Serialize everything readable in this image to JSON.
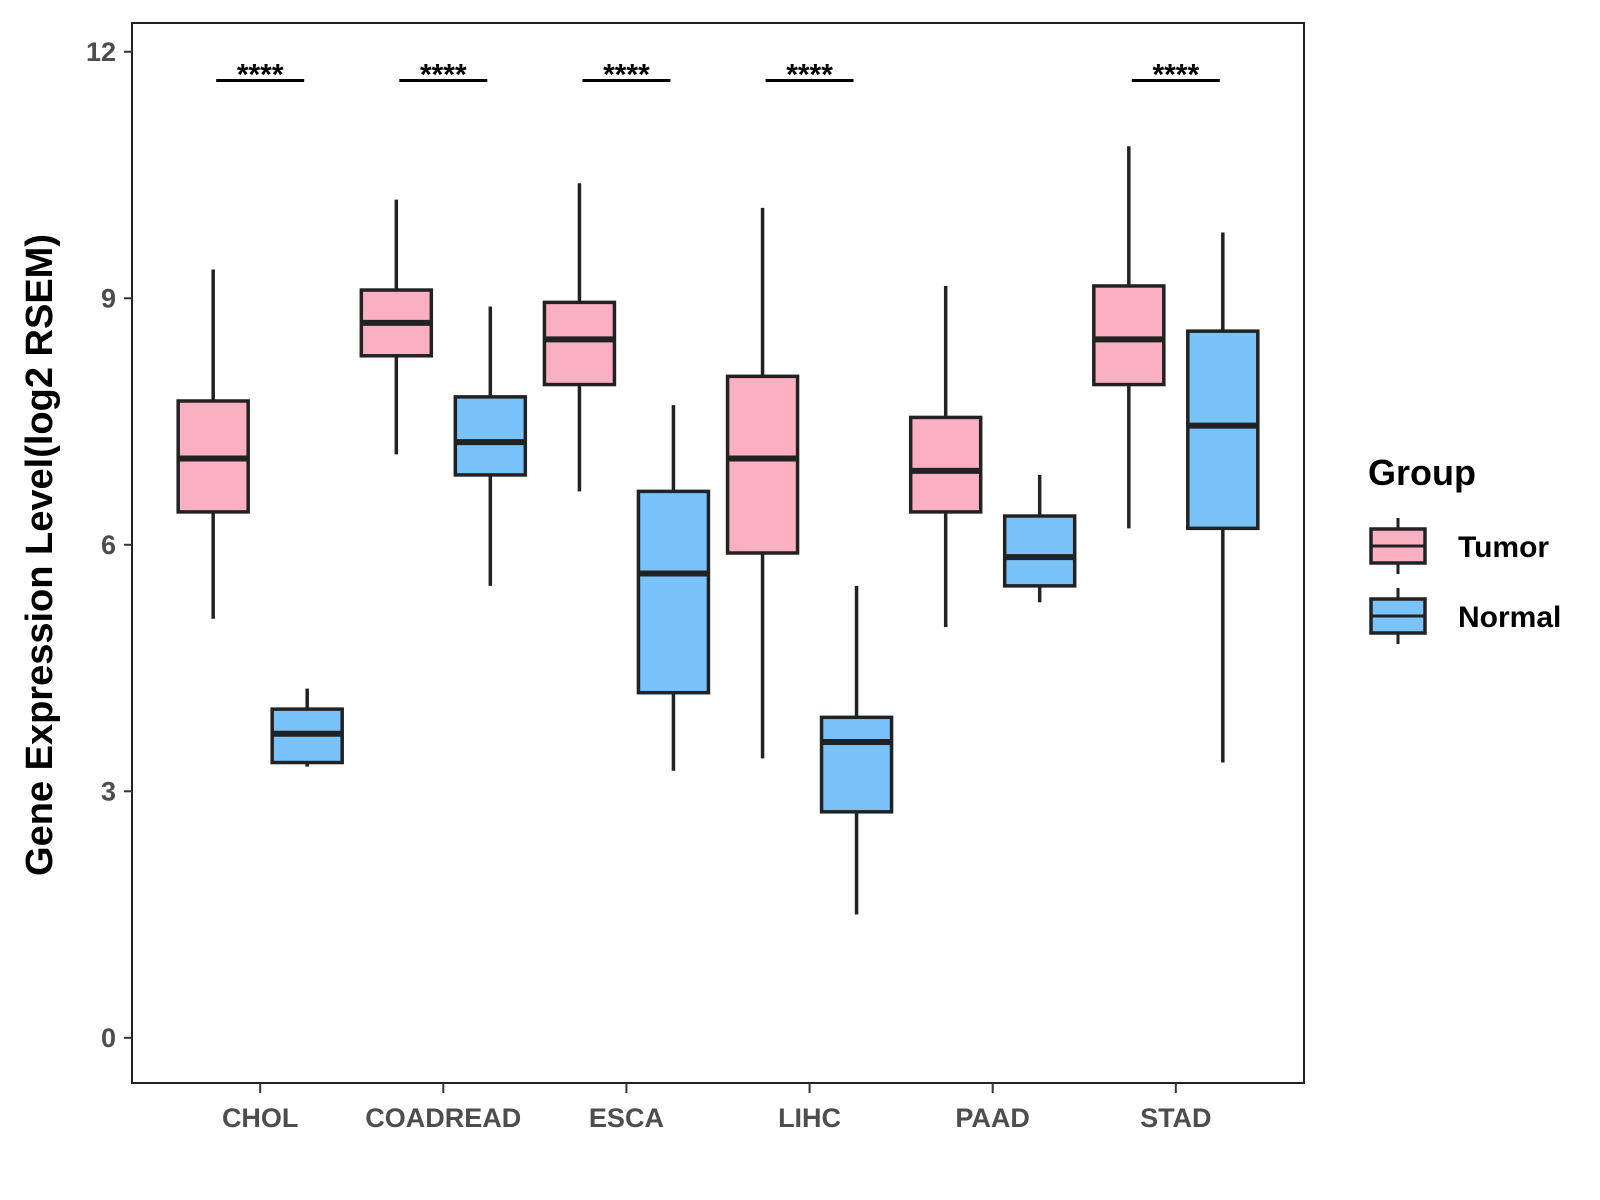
{
  "chart_data": {
    "type": "boxplot",
    "title": "",
    "xlabel": "",
    "ylabel": "Gene Expression Level(log2 RSEM)",
    "ylim": [
      -0.55,
      12.35
    ],
    "yticks": [
      0,
      3,
      6,
      9,
      12
    ],
    "categories": [
      "CHOL",
      "COADREAD",
      "ESCA",
      "LIHC",
      "PAAD",
      "STAD"
    ],
    "legend": {
      "title": "Group",
      "placement": "right",
      "entries": [
        {
          "name": "Tumor",
          "color": "#fbb0c1"
        },
        {
          "name": "Normal",
          "color": "#79c2fa"
        }
      ]
    },
    "series": [
      {
        "name": "Tumor",
        "color": "#fbb0c1",
        "boxes": [
          {
            "category": "CHOL",
            "whisker_low": 5.1,
            "q1": 6.4,
            "median": 7.05,
            "q3": 7.75,
            "whisker_high": 9.35
          },
          {
            "category": "COADREAD",
            "whisker_low": 7.1,
            "q1": 8.3,
            "median": 8.7,
            "q3": 9.1,
            "whisker_high": 10.2
          },
          {
            "category": "ESCA",
            "whisker_low": 6.65,
            "q1": 7.95,
            "median": 8.5,
            "q3": 8.95,
            "whisker_high": 10.4
          },
          {
            "category": "LIHC",
            "whisker_low": 3.4,
            "q1": 5.9,
            "median": 7.05,
            "q3": 8.05,
            "whisker_high": 10.1
          },
          {
            "category": "PAAD",
            "whisker_low": 5.0,
            "q1": 6.4,
            "median": 6.9,
            "q3": 7.55,
            "whisker_high": 9.15
          },
          {
            "category": "STAD",
            "whisker_low": 6.2,
            "q1": 7.95,
            "median": 8.5,
            "q3": 9.15,
            "whisker_high": 10.85
          }
        ]
      },
      {
        "name": "Normal",
        "color": "#79c2fa",
        "boxes": [
          {
            "category": "CHOL",
            "whisker_low": 3.3,
            "q1": 3.35,
            "median": 3.7,
            "q3": 4.0,
            "whisker_high": 4.25
          },
          {
            "category": "COADREAD",
            "whisker_low": 5.5,
            "q1": 6.85,
            "median": 7.25,
            "q3": 7.8,
            "whisker_high": 8.9
          },
          {
            "category": "ESCA",
            "whisker_low": 3.25,
            "q1": 4.2,
            "median": 5.65,
            "q3": 6.65,
            "whisker_high": 7.7
          },
          {
            "category": "LIHC",
            "whisker_low": 1.5,
            "q1": 2.75,
            "median": 3.6,
            "q3": 3.9,
            "whisker_high": 5.5
          },
          {
            "category": "PAAD",
            "whisker_low": 5.3,
            "q1": 5.5,
            "median": 5.85,
            "q3": 6.35,
            "whisker_high": 6.85
          },
          {
            "category": "STAD",
            "whisker_low": 3.35,
            "q1": 6.2,
            "median": 7.45,
            "q3": 8.6,
            "whisker_high": 9.8
          }
        ]
      }
    ],
    "annotations": [
      {
        "category": "CHOL",
        "label": "****",
        "y": 11.65
      },
      {
        "category": "COADREAD",
        "label": "****",
        "y": 11.65
      },
      {
        "category": "ESCA",
        "label": "****",
        "y": 11.65
      },
      {
        "category": "LIHC",
        "label": "****",
        "y": 11.65
      },
      {
        "category": "STAD",
        "label": "****",
        "y": 11.65
      }
    ]
  }
}
